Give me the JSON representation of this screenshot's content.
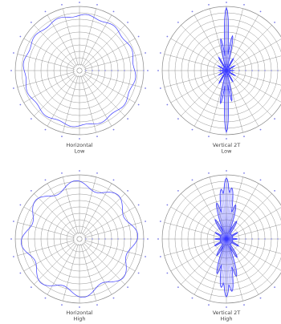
{
  "chart_data": [
    {
      "type": "polar",
      "caption": [
        "Horizontal",
        "Low"
      ],
      "pattern": "omni-bumpy",
      "base_radius": 0.86,
      "ripple": 0.02,
      "lobes": 12,
      "phase": 0
    },
    {
      "type": "polar",
      "caption": [
        "Vertical 2T",
        "Low"
      ],
      "pattern": "vertical-star",
      "base_radius": 0.06,
      "spikes": [
        {
          "angle": 0,
          "r": 0.98
        },
        {
          "angle": 180,
          "r": 0.96
        },
        {
          "angle": 10,
          "r": 0.55
        },
        {
          "angle": 350,
          "r": 0.5
        },
        {
          "angle": 170,
          "r": 0.48
        },
        {
          "angle": 190,
          "r": 0.52
        },
        {
          "angle": 30,
          "r": 0.22
        },
        {
          "angle": 330,
          "r": 0.24
        },
        {
          "angle": 150,
          "r": 0.2
        },
        {
          "angle": 210,
          "r": 0.23
        },
        {
          "angle": 90,
          "r": 0.12
        },
        {
          "angle": 270,
          "r": 0.12
        },
        {
          "angle": 60,
          "r": 0.15
        },
        {
          "angle": 120,
          "r": 0.16
        },
        {
          "angle": 240,
          "r": 0.14
        },
        {
          "angle": 300,
          "r": 0.15
        }
      ]
    },
    {
      "type": "polar",
      "caption": [
        "Horizontal",
        "High"
      ],
      "pattern": "omni-bumpy",
      "base_radius": 0.84,
      "ripple": 0.07,
      "lobes": 8,
      "phase": 15
    },
    {
      "type": "polar",
      "caption": [
        "Vertical 2T",
        "High"
      ],
      "pattern": "vertical-star-dense",
      "base_radius": 0.1,
      "spikes": [
        {
          "angle": 0,
          "r": 0.95
        },
        {
          "angle": 180,
          "r": 0.9
        },
        {
          "angle": 6,
          "r": 0.8
        },
        {
          "angle": 354,
          "r": 0.78
        },
        {
          "angle": 174,
          "r": 0.82
        },
        {
          "angle": 186,
          "r": 0.76
        },
        {
          "angle": 15,
          "r": 0.55
        },
        {
          "angle": 345,
          "r": 0.58
        },
        {
          "angle": 165,
          "r": 0.6
        },
        {
          "angle": 195,
          "r": 0.56
        },
        {
          "angle": 30,
          "r": 0.32
        },
        {
          "angle": 330,
          "r": 0.35
        },
        {
          "angle": 150,
          "r": 0.33
        },
        {
          "angle": 210,
          "r": 0.3
        },
        {
          "angle": 60,
          "r": 0.2
        },
        {
          "angle": 120,
          "r": 0.22
        },
        {
          "angle": 240,
          "r": 0.21
        },
        {
          "angle": 300,
          "r": 0.2
        },
        {
          "angle": 90,
          "r": 0.17
        },
        {
          "angle": 270,
          "r": 0.18
        }
      ]
    }
  ],
  "style": {
    "grid_color": "#8a8a8a",
    "curve_color": "#3a3aff",
    "tick_color": "#7a7ae6"
  }
}
